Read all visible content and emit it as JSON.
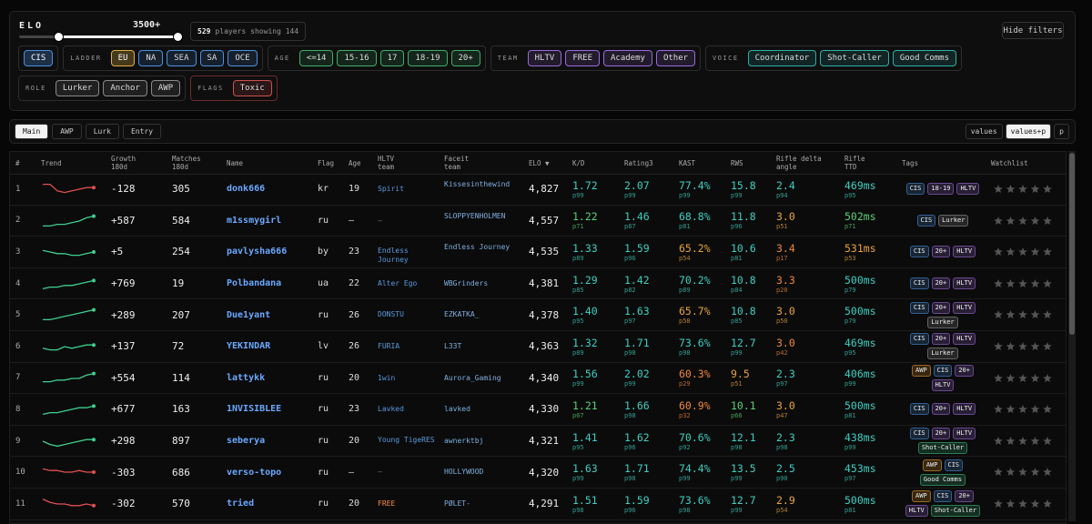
{
  "filters": {
    "elo_label": "ELO",
    "elo_max": "3500+",
    "players_count": "529",
    "players_word": "players",
    "showing": "showing 144",
    "hide_button": "Hide filters",
    "groups": [
      {
        "color": "#4a90e2",
        "options": [
          "CIS"
        ],
        "selected": "CIS"
      },
      {
        "label": "LADDER",
        "color": "#4a90e2",
        "options": [
          "EU",
          "NA",
          "SEA",
          "SA",
          "OCE"
        ],
        "selected": "EU"
      },
      {
        "label": "AGE",
        "color": "#3fae6a",
        "options": [
          "<=14",
          "15-16",
          "17",
          "18-19",
          "20+"
        ]
      },
      {
        "label": "TEAM",
        "color": "#9a6ae0",
        "options": [
          "HLTV",
          "FREE",
          "Academy",
          "Other"
        ]
      },
      {
        "label": "VOICE",
        "color": "#2fb0a8",
        "options": [
          "Coordinator",
          "Shot-Caller",
          "Good Comms"
        ]
      },
      {
        "label": "ROLE",
        "color": "#8a8a8a",
        "options": [
          "Lurker",
          "Anchor",
          "AWP"
        ]
      },
      {
        "label": "FLAGS",
        "color": "#d05050",
        "border": "#6b2b2b",
        "options": [
          "Toxic"
        ]
      }
    ]
  },
  "tabs": {
    "items": [
      "Main",
      "AWP",
      "Lurk",
      "Entry"
    ],
    "selected": "Main",
    "views": [
      "values",
      "values+p",
      "p"
    ],
    "selected_view": "values+p"
  },
  "table": {
    "headers": [
      "#",
      "Trend",
      "Growth\n180d",
      "Matches\n180d",
      "Name",
      "Flag",
      "Age",
      "HLTV\nteam",
      "Faceit\nteam",
      "ELO ▼",
      "K/D",
      "Rating3",
      "KAST",
      "RWS",
      "Rifle delta\nangle",
      "Rifle\nTTD",
      "Tags",
      "Watchlist"
    ],
    "trend_ylim": [
      0,
      10
    ],
    "team_colors": {
      "FREE": "#ff8c42",
      "–": "#777777"
    },
    "tag_colors": {
      "CIS": "#4a90e2",
      "18-19": "#a070e0",
      "20+": "#a070e0",
      "HLTV": "#a070e0",
      "Lurker": "#9a9a9a",
      "AWP": "#f0a030",
      "Shot-Caller": "#40c080",
      "Good Comms": "#40c080"
    },
    "rows": [
      {
        "rank": "1",
        "trend": [
          8,
          8,
          4,
          3,
          4,
          5,
          6,
          6
        ],
        "growth": "-128",
        "matches": "305",
        "name": "donk666",
        "flag": "kr",
        "age": "19",
        "hltv": "Spirit",
        "faceit": "Kissesinthewind",
        "elo": "4,827",
        "kd": {
          "v": "1.72",
          "p": "p99"
        },
        "rating": {
          "v": "2.07",
          "p": "p99"
        },
        "kast": {
          "v": "77.4%",
          "p": "p99"
        },
        "rws": {
          "v": "15.8",
          "p": "p99"
        },
        "rda": {
          "v": "2.4",
          "p": "p94"
        },
        "ttd": {
          "v": "469ms",
          "p": "p95"
        },
        "tags": [
          "CIS",
          "18-19",
          "HLTV"
        ]
      },
      {
        "rank": "2",
        "trend": [
          2,
          2,
          3,
          3,
          4,
          5,
          7,
          8
        ],
        "growth": "+587",
        "matches": "584",
        "name": "m1ssmygirl",
        "flag": "ru",
        "age": "–",
        "hltv": "–",
        "faceit": "SLOPPYENHOLMEN",
        "elo": "4,557",
        "kd": {
          "v": "1.22",
          "p": "p71"
        },
        "rating": {
          "v": "1.46",
          "p": "p87"
        },
        "kast": {
          "v": "68.8%",
          "p": "p81"
        },
        "rws": {
          "v": "11.8",
          "p": "p96"
        },
        "rda": {
          "v": "3.0",
          "p": "p51"
        },
        "ttd": {
          "v": "502ms",
          "p": "p71"
        },
        "tags": [
          "CIS",
          "Lurker"
        ]
      },
      {
        "rank": "3",
        "trend": [
          6,
          5,
          4,
          4,
          3,
          3,
          4,
          5
        ],
        "growth": "+5",
        "matches": "254",
        "name": "pavlysha666",
        "flag": "by",
        "age": "23",
        "hltv": "Endless Journey",
        "faceit": "Endless Journey",
        "elo": "4,535",
        "kd": {
          "v": "1.33",
          "p": "p89"
        },
        "rating": {
          "v": "1.59",
          "p": "p96"
        },
        "kast": {
          "v": "65.2%",
          "p": "p54"
        },
        "rws": {
          "v": "10.6",
          "p": "p81"
        },
        "rda": {
          "v": "3.4",
          "p": "p17"
        },
        "ttd": {
          "v": "531ms",
          "p": "p53"
        },
        "tags": [
          "CIS",
          "20+",
          "HLTV"
        ]
      },
      {
        "rank": "4",
        "trend": [
          2,
          3,
          3,
          4,
          4,
          5,
          6,
          7
        ],
        "growth": "+769",
        "matches": "19",
        "name": "Polbandana",
        "flag": "ua",
        "age": "22",
        "hltv": "Alter Ego",
        "faceit": "WBGrinders",
        "elo": "4,381",
        "kd": {
          "v": "1.29",
          "p": "p85"
        },
        "rating": {
          "v": "1.42",
          "p": "p82"
        },
        "kast": {
          "v": "70.2%",
          "p": "p89"
        },
        "rws": {
          "v": "10.8",
          "p": "p84"
        },
        "rda": {
          "v": "3.3",
          "p": "p20"
        },
        "ttd": {
          "v": "500ms",
          "p": "p79"
        },
        "tags": [
          "CIS",
          "20+",
          "HLTV"
        ]
      },
      {
        "rank": "5",
        "trend": [
          2,
          2,
          3,
          4,
          5,
          6,
          7,
          8
        ],
        "growth": "+289",
        "matches": "207",
        "name": "Due1yant",
        "flag": "ru",
        "age": "26",
        "hltv": "DONSTU",
        "faceit": "EZKATKA_",
        "elo": "4,378",
        "kd": {
          "v": "1.40",
          "p": "p95"
        },
        "rating": {
          "v": "1.63",
          "p": "p97"
        },
        "kast": {
          "v": "65.7%",
          "p": "p58"
        },
        "rws": {
          "v": "10.8",
          "p": "p85"
        },
        "rda": {
          "v": "3.0",
          "p": "p50"
        },
        "ttd": {
          "v": "500ms",
          "p": "p79"
        },
        "tags": [
          "CIS",
          "20+",
          "HLTV",
          "Lurker"
        ]
      },
      {
        "rank": "6",
        "trend": [
          4,
          3,
          3,
          5,
          4,
          5,
          6,
          6
        ],
        "growth": "+137",
        "matches": "72",
        "name": "YEKINDAR",
        "flag": "lv",
        "age": "26",
        "hltv": "FURIA",
        "faceit": "L33T",
        "elo": "4,363",
        "kd": {
          "v": "1.32",
          "p": "p89"
        },
        "rating": {
          "v": "1.71",
          "p": "p98"
        },
        "kast": {
          "v": "73.6%",
          "p": "p98"
        },
        "rws": {
          "v": "12.7",
          "p": "p99"
        },
        "rda": {
          "v": "3.0",
          "p": "p42"
        },
        "ttd": {
          "v": "469ms",
          "p": "p95"
        },
        "tags": [
          "CIS",
          "20+",
          "HLTV",
          "Lurker"
        ]
      },
      {
        "rank": "7",
        "trend": [
          3,
          3,
          4,
          4,
          5,
          5,
          7,
          8
        ],
        "growth": "+554",
        "matches": "114",
        "name": "lattykk",
        "flag": "ru",
        "age": "20",
        "hltv": "1win",
        "faceit": "Aurora_Gaming",
        "elo": "4,340",
        "kd": {
          "v": "1.56",
          "p": "p99"
        },
        "rating": {
          "v": "2.02",
          "p": "p99"
        },
        "kast": {
          "v": "60.3%",
          "p": "p29"
        },
        "rws": {
          "v": "9.5",
          "p": "p51"
        },
        "rda": {
          "v": "2.3",
          "p": "p97"
        },
        "ttd": {
          "v": "406ms",
          "p": "p99"
        },
        "tags": [
          "AWP",
          "CIS",
          "20+",
          "HLTV"
        ]
      },
      {
        "rank": "8",
        "trend": [
          2,
          3,
          3,
          4,
          5,
          6,
          6,
          7
        ],
        "growth": "+677",
        "matches": "163",
        "name": "1NVISIBLEE",
        "flag": "ru",
        "age": "23",
        "hltv": "Lavked",
        "faceit": "lavked",
        "elo": "4,330",
        "kd": {
          "v": "1.21",
          "p": "p67"
        },
        "rating": {
          "v": "1.66",
          "p": "p98"
        },
        "kast": {
          "v": "60.9%",
          "p": "p32"
        },
        "rws": {
          "v": "10.1",
          "p": "p66"
        },
        "rda": {
          "v": "3.0",
          "p": "p47"
        },
        "ttd": {
          "v": "500ms",
          "p": "p81"
        },
        "tags": [
          "CIS",
          "20+",
          "HLTV"
        ]
      },
      {
        "rank": "9",
        "trend": [
          5,
          3,
          2,
          3,
          4,
          5,
          6,
          6
        ],
        "growth": "+298",
        "matches": "897",
        "name": "seberya",
        "flag": "ru",
        "age": "20",
        "hltv": "Young TigeRES",
        "faceit": "awnerktbj",
        "elo": "4,321",
        "kd": {
          "v": "1.41",
          "p": "p95"
        },
        "rating": {
          "v": "1.62",
          "p": "p96"
        },
        "kast": {
          "v": "70.6%",
          "p": "p92"
        },
        "rws": {
          "v": "12.1",
          "p": "p98"
        },
        "rda": {
          "v": "2.3",
          "p": "p98"
        },
        "ttd": {
          "v": "438ms",
          "p": "p99"
        },
        "tags": [
          "CIS",
          "20+",
          "HLTV",
          "Shot-Caller"
        ]
      },
      {
        "rank": "10",
        "trend": [
          7,
          6,
          6,
          5,
          5,
          6,
          5,
          5
        ],
        "growth": "-303",
        "matches": "686",
        "name": "verso-topo",
        "flag": "ru",
        "age": "–",
        "hltv": "–",
        "faceit": "HOLLYWOOD",
        "elo": "4,320",
        "kd": {
          "v": "1.63",
          "p": "p99"
        },
        "rating": {
          "v": "1.71",
          "p": "p98"
        },
        "kast": {
          "v": "74.4%",
          "p": "p99"
        },
        "rws": {
          "v": "13.5",
          "p": "p99"
        },
        "rda": {
          "v": "2.5",
          "p": "p90"
        },
        "ttd": {
          "v": "453ms",
          "p": "p97"
        },
        "tags": [
          "AWP",
          "CIS",
          "Good Comms"
        ]
      },
      {
        "rank": "11",
        "trend": [
          8,
          6,
          5,
          5,
          4,
          4,
          5,
          4
        ],
        "growth": "-302",
        "matches": "570",
        "name": "tried",
        "flag": "ru",
        "age": "20",
        "hltv": "FREE",
        "faceit": "PØLET-",
        "elo": "4,291",
        "kd": {
          "v": "1.51",
          "p": "p98"
        },
        "rating": {
          "v": "1.59",
          "p": "p96"
        },
        "kast": {
          "v": "73.6%",
          "p": "p98"
        },
        "rws": {
          "v": "12.7",
          "p": "p99"
        },
        "rda": {
          "v": "2.9",
          "p": "p54"
        },
        "ttd": {
          "v": "500ms",
          "p": "p81"
        },
        "tags": [
          "AWP",
          "CIS",
          "20+",
          "HLTV",
          "Shot-Caller"
        ]
      }
    ]
  }
}
